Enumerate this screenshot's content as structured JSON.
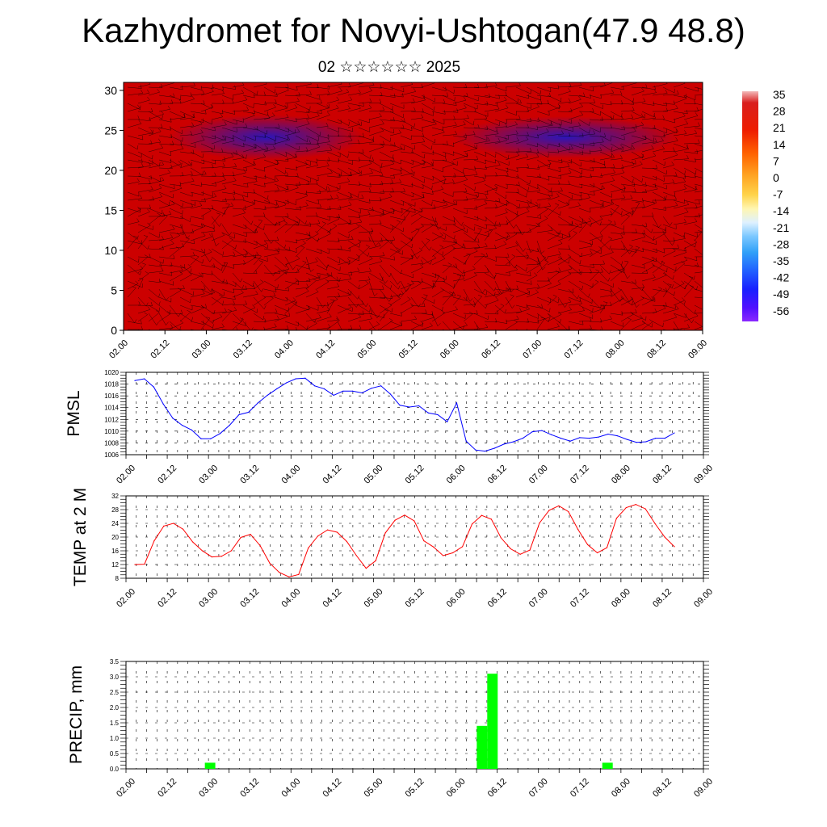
{
  "title": "Kazhydromet for Novyi-Ushtogan(47.9 48.8)",
  "subtitle": "02 ☆☆☆☆☆☆ 2025",
  "time_labels": [
    "02.00",
    "02.12",
    "03.00",
    "03.12",
    "04.00",
    "04.12",
    "05.00",
    "05.12",
    "06.00",
    "06.12",
    "07.00",
    "07.12",
    "08.00",
    "08.12",
    "09.00"
  ],
  "colors": {
    "pmsl_line": "#0000ff",
    "temp_line": "#ff0000",
    "precip_bar": "#00ff00"
  },
  "chart_data": [
    {
      "type": "heatmap",
      "description_axis": "height",
      "x_ticks": [
        "02.00",
        "02.12",
        "03.00",
        "03.12",
        "04.00",
        "04.12",
        "05.00",
        "05.12",
        "06.00",
        "06.12",
        "07.00",
        "07.12",
        "08.00",
        "08.12",
        "09.00"
      ],
      "y_ticks": [
        "0",
        "5",
        "10",
        "15",
        "20",
        "25",
        "30"
      ],
      "ylim": [
        0,
        31
      ],
      "colorbar_labels": [
        "35",
        "28",
        "21",
        "14",
        "7",
        "0",
        "-7",
        "-14",
        "-21",
        "-28",
        "-35",
        "-42",
        "-49",
        "-56"
      ],
      "colorbar_range": [
        -63,
        42
      ]
    },
    {
      "type": "line",
      "ylabel": "PMSL",
      "ylim": [
        1006,
        1020
      ],
      "y_ticks": [
        "1006",
        "1008",
        "1010",
        "1012",
        "1014",
        "1016",
        "1018",
        "1020"
      ],
      "x_ticks": [
        "02.00",
        "02.12",
        "03.00",
        "03.12",
        "04.00",
        "04.12",
        "05.00",
        "05.12",
        "06.00",
        "06.12",
        "07.00",
        "07.12",
        "08.00",
        "08.12",
        "09.00"
      ],
      "values": [
        1018.6,
        1018.9,
        1017.5,
        1014.6,
        1012.2,
        1011.0,
        1010.2,
        1008.7,
        1008.7,
        1009.6,
        1011.0,
        1012.8,
        1013.2,
        1014.8,
        1016.1,
        1017.2,
        1018.2,
        1018.9,
        1019.0,
        1017.7,
        1017.2,
        1016.1,
        1016.8,
        1016.8,
        1016.5,
        1017.3,
        1017.7,
        1016.3,
        1014.4,
        1014.1,
        1014.3,
        1013.1,
        1012.8,
        1011.6,
        1014.8,
        1008.3,
        1006.8,
        1006.6,
        1007.1,
        1007.8,
        1008.2,
        1008.8,
        1009.9,
        1010.1,
        1009.4,
        1008.8,
        1008.3,
        1008.9,
        1008.8,
        1009.0,
        1009.5,
        1009.2,
        1008.6,
        1008.1,
        1008.2,
        1008.8,
        1008.8,
        1009.7
      ]
    },
    {
      "type": "line",
      "ylabel": "TEMP at 2 M",
      "ylim": [
        8,
        32
      ],
      "y_ticks": [
        "8",
        "12",
        "16",
        "20",
        "24",
        "28",
        "32"
      ],
      "x_ticks": [
        "02.00",
        "02.12",
        "03.00",
        "03.12",
        "04.00",
        "04.12",
        "05.00",
        "05.12",
        "06.00",
        "06.12",
        "07.00",
        "07.12",
        "08.00",
        "08.12",
        "09.00"
      ],
      "values": [
        12.0,
        12.1,
        18.9,
        23.2,
        24.0,
        22.3,
        18.6,
        16.0,
        14.2,
        14.4,
        16.0,
        19.9,
        20.8,
        17.5,
        12.4,
        9.7,
        8.4,
        9.1,
        16.8,
        20.3,
        22.1,
        21.4,
        18.7,
        14.6,
        10.9,
        13.1,
        21.2,
        24.9,
        26.4,
        24.7,
        18.9,
        17.1,
        14.6,
        15.4,
        17.2,
        23.8,
        26.3,
        25.2,
        19.8,
        16.6,
        15.0,
        16.2,
        24.1,
        27.8,
        29.1,
        27.4,
        22.2,
        17.8,
        15.4,
        16.9,
        25.5,
        28.6,
        29.5,
        28.2,
        23.9,
        20.0,
        17.2
      ]
    },
    {
      "type": "bar",
      "ylabel": "PRECIP, mm",
      "ylim": [
        0,
        3.5
      ],
      "y_ticks": [
        "0.0",
        "0.5",
        "1.0",
        "1.5",
        "2.0",
        "2.5",
        "3.0",
        "3.5"
      ],
      "x_ticks": [
        "02.00",
        "02.12",
        "03.00",
        "03.12",
        "04.00",
        "04.12",
        "05.00",
        "05.12",
        "06.00",
        "06.12",
        "07.00",
        "07.12",
        "08.00",
        "08.12",
        "09.00"
      ],
      "bars": [
        {
          "start": "02.21",
          "end": "03.00",
          "value": 0.2
        },
        {
          "start": "06.03",
          "end": "06.06",
          "value": 1.4
        },
        {
          "start": "06.06",
          "end": "06.09",
          "value": 3.1
        },
        {
          "start": "07.15",
          "end": "07.18",
          "value": 0.2
        }
      ]
    }
  ]
}
